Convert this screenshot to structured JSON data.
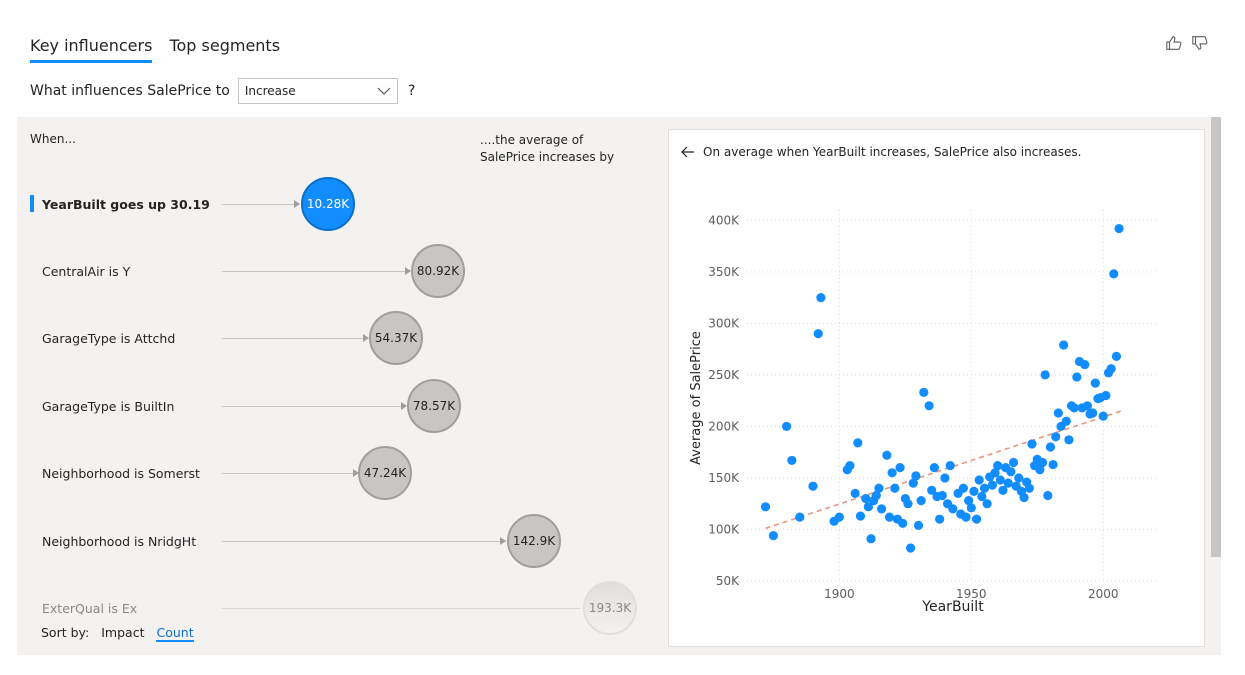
{
  "tabs": [
    {
      "label": "Key influencers",
      "active": true
    },
    {
      "label": "Top segments",
      "active": false
    }
  ],
  "question": {
    "prefix": "What influences SalePrice to",
    "selected": "Increase",
    "suffix": "?"
  },
  "columns": {
    "when": "When...",
    "average": "....the average of SalePrice increases by"
  },
  "influencers": [
    {
      "label": "YearBuilt goes up 30.19",
      "value": "10.28K",
      "selected": true
    },
    {
      "label": "CentralAir is Y",
      "value": "80.92K"
    },
    {
      "label": "GarageType is Attchd",
      "value": "54.37K"
    },
    {
      "label": "GarageType is BuiltIn",
      "value": "78.57K"
    },
    {
      "label": "Neighborhood is Somerst",
      "value": "47.24K"
    },
    {
      "label": "Neighborhood is NridgHt",
      "value": "142.9K"
    },
    {
      "label": "ExterQual is Ex",
      "value": "193.3K",
      "faded": true
    }
  ],
  "sort": {
    "label": "Sort by:",
    "options": [
      "Impact",
      "Count"
    ],
    "active": "Count"
  },
  "detail": {
    "description": "On average when YearBuilt increases, SalePrice also increases."
  },
  "colors": {
    "accent": "#118dff",
    "trend": "#e8967a",
    "bubble": "#c8c6c4"
  },
  "chart_data": {
    "type": "scatter",
    "xlabel": "YearBuilt",
    "ylabel": "Average of SalePrice",
    "xlim": [
      1865,
      2020
    ],
    "ylim": [
      50000,
      410000
    ],
    "x_ticks": [
      1900,
      1950,
      2000
    ],
    "x_tick_labels": [
      "1900",
      "1950",
      "2000"
    ],
    "y_ticks": [
      50000,
      100000,
      150000,
      200000,
      250000,
      300000,
      350000,
      400000
    ],
    "y_tick_labels": [
      "50K",
      "100K",
      "150K",
      "200K",
      "250K",
      "300K",
      "350K",
      "400K"
    ],
    "grid": true,
    "points": [
      [
        1872,
        122000
      ],
      [
        1875,
        94000
      ],
      [
        1880,
        200000
      ],
      [
        1882,
        167000
      ],
      [
        1885,
        112000
      ],
      [
        1890,
        142000
      ],
      [
        1892,
        290000
      ],
      [
        1893,
        325000
      ],
      [
        1898,
        108000
      ],
      [
        1900,
        112000
      ],
      [
        1903,
        158000
      ],
      [
        1904,
        162000
      ],
      [
        1906,
        135000
      ],
      [
        1907,
        184000
      ],
      [
        1908,
        113000
      ],
      [
        1910,
        130000
      ],
      [
        1911,
        122000
      ],
      [
        1912,
        91000
      ],
      [
        1913,
        128000
      ],
      [
        1914,
        133000
      ],
      [
        1915,
        140000
      ],
      [
        1916,
        120000
      ],
      [
        1918,
        172000
      ],
      [
        1919,
        112000
      ],
      [
        1920,
        155000
      ],
      [
        1921,
        140000
      ],
      [
        1922,
        110000
      ],
      [
        1923,
        160000
      ],
      [
        1924,
        106000
      ],
      [
        1925,
        130000
      ],
      [
        1926,
        125000
      ],
      [
        1927,
        82000
      ],
      [
        1928,
        145000
      ],
      [
        1929,
        152000
      ],
      [
        1930,
        104000
      ],
      [
        1931,
        128000
      ],
      [
        1932,
        233000
      ],
      [
        1934,
        220000
      ],
      [
        1935,
        138000
      ],
      [
        1936,
        160000
      ],
      [
        1937,
        132000
      ],
      [
        1938,
        110000
      ],
      [
        1939,
        133000
      ],
      [
        1940,
        150000
      ],
      [
        1941,
        125000
      ],
      [
        1942,
        162000
      ],
      [
        1943,
        120000
      ],
      [
        1945,
        135000
      ],
      [
        1946,
        115000
      ],
      [
        1947,
        140000
      ],
      [
        1948,
        112000
      ],
      [
        1949,
        128000
      ],
      [
        1950,
        121000
      ],
      [
        1951,
        137000
      ],
      [
        1952,
        110000
      ],
      [
        1953,
        148000
      ],
      [
        1954,
        132000
      ],
      [
        1955,
        140000
      ],
      [
        1956,
        125000
      ],
      [
        1957,
        151000
      ],
      [
        1958,
        143000
      ],
      [
        1959,
        155000
      ],
      [
        1960,
        162000
      ],
      [
        1961,
        148000
      ],
      [
        1962,
        138000
      ],
      [
        1963,
        160000
      ],
      [
        1964,
        145000
      ],
      [
        1965,
        156000
      ],
      [
        1966,
        165000
      ],
      [
        1967,
        142000
      ],
      [
        1968,
        150000
      ],
      [
        1969,
        137000
      ],
      [
        1970,
        131000
      ],
      [
        1971,
        146000
      ],
      [
        1972,
        140000
      ],
      [
        1973,
        183000
      ],
      [
        1974,
        162000
      ],
      [
        1975,
        168000
      ],
      [
        1976,
        158000
      ],
      [
        1977,
        165000
      ],
      [
        1978,
        250000
      ],
      [
        1979,
        133000
      ],
      [
        1980,
        180000
      ],
      [
        1981,
        163000
      ],
      [
        1982,
        190000
      ],
      [
        1983,
        213000
      ],
      [
        1984,
        200000
      ],
      [
        1985,
        279000
      ],
      [
        1986,
        205000
      ],
      [
        1987,
        187000
      ],
      [
        1988,
        220000
      ],
      [
        1989,
        218000
      ],
      [
        1990,
        248000
      ],
      [
        1991,
        263000
      ],
      [
        1992,
        218000
      ],
      [
        1993,
        260000
      ],
      [
        1994,
        220000
      ],
      [
        1995,
        212000
      ],
      [
        1996,
        213000
      ],
      [
        1997,
        242000
      ],
      [
        1998,
        227000
      ],
      [
        1999,
        228000
      ],
      [
        2000,
        210000
      ],
      [
        2001,
        230000
      ],
      [
        2002,
        252000
      ],
      [
        2003,
        256000
      ],
      [
        2004,
        348000
      ],
      [
        2005,
        268000
      ],
      [
        2006,
        392000
      ]
    ],
    "trendline": {
      "x": [
        1872,
        2008
      ],
      "y": [
        101000,
        216000
      ]
    }
  }
}
